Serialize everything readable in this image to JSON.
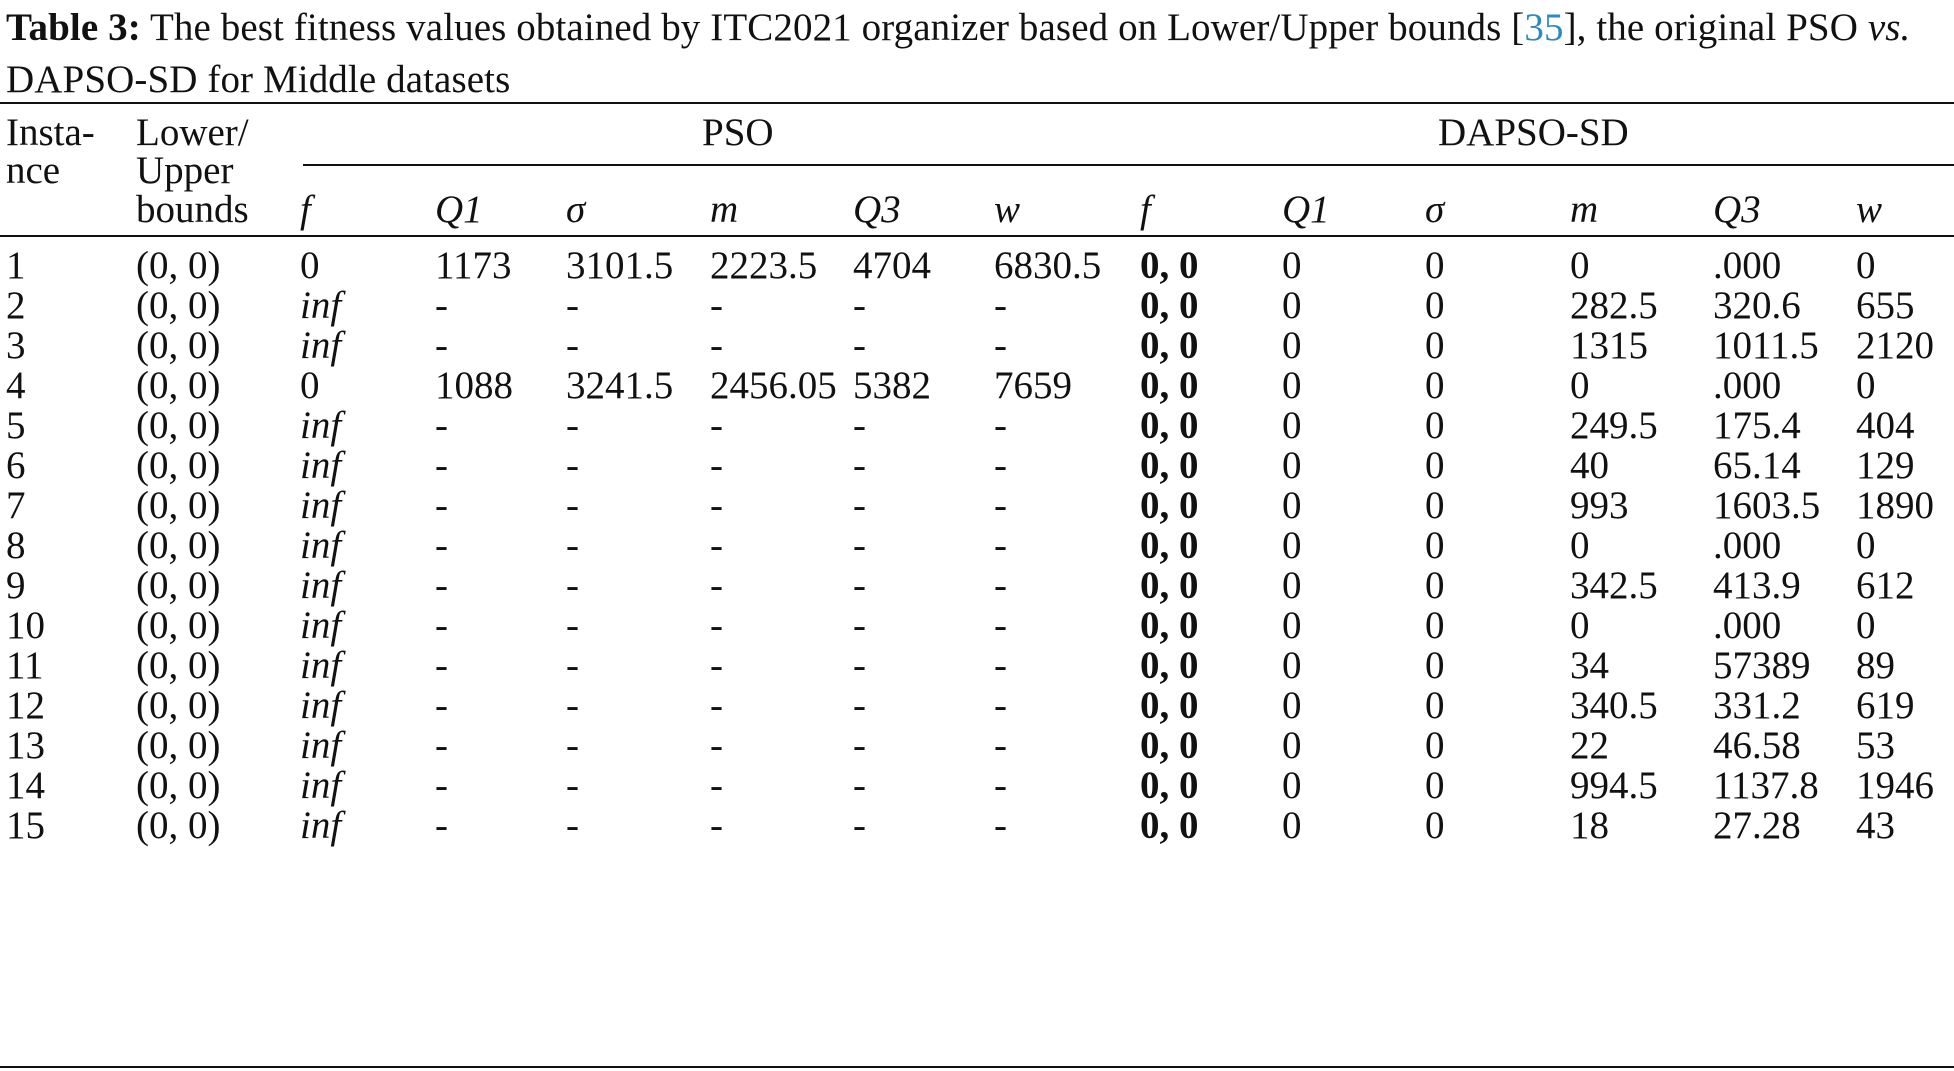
{
  "caption": {
    "label": "Table 3:",
    "text_before": " The best fitness values obtained by ITC2021 organizer based on Lower/Upper bounds [",
    "citation": "35",
    "text_after": "], the original PSO ",
    "vs": "vs.",
    "text_end": " DAPSO-SD for Middle datasets"
  },
  "header": {
    "instance_line1": "Insta-",
    "instance_line2": "nce",
    "bounds_line1": "Lower/",
    "bounds_line2": "Upper",
    "bounds_line3": "bounds",
    "group_pso": "PSO",
    "group_dapso": "DAPSO-SD",
    "sub_cols": [
      "f",
      "Q1",
      "σ",
      "m",
      "Q3",
      "w",
      "f",
      "Q1",
      "σ",
      "m",
      "Q3",
      "w"
    ]
  },
  "rows": [
    [
      "1",
      "(0, 0)",
      "0",
      "1173",
      "3101.5",
      "2223.5",
      "4704",
      "6830.5",
      "0, 0",
      "0",
      "0",
      "0",
      ".000",
      "0"
    ],
    [
      "2",
      "(0, 0)",
      "inf",
      "-",
      "-",
      "-",
      "-",
      "-",
      "0, 0",
      "0",
      "0",
      "282.5",
      "320.6",
      "655"
    ],
    [
      "3",
      "(0, 0)",
      "inf",
      "-",
      "-",
      "-",
      "-",
      "-",
      "0, 0",
      "0",
      "0",
      "1315",
      "1011.5",
      "2120"
    ],
    [
      "4",
      "(0, 0)",
      "0",
      "1088",
      "3241.5",
      "2456.05",
      "5382",
      "7659",
      "0, 0",
      "0",
      "0",
      "0",
      ".000",
      "0"
    ],
    [
      "5",
      "(0, 0)",
      "inf",
      "-",
      "-",
      "-",
      "-",
      "-",
      "0, 0",
      "0",
      "0",
      "249.5",
      "175.4",
      "404"
    ],
    [
      "6",
      "(0, 0)",
      "inf",
      "-",
      "-",
      "-",
      "-",
      "-",
      "0, 0",
      "0",
      "0",
      "40",
      "65.14",
      "129"
    ],
    [
      "7",
      "(0, 0)",
      "inf",
      "-",
      "-",
      "-",
      "-",
      "-",
      "0, 0",
      "0",
      "0",
      "993",
      "1603.5",
      "1890"
    ],
    [
      "8",
      "(0, 0)",
      "inf",
      "-",
      "-",
      "-",
      "-",
      "-",
      "0, 0",
      "0",
      "0",
      "0",
      ".000",
      "0"
    ],
    [
      "9",
      "(0, 0)",
      "inf",
      "-",
      "-",
      "-",
      "-",
      "-",
      "0, 0",
      "0",
      "0",
      "342.5",
      "413.9",
      "612"
    ],
    [
      "10",
      "(0, 0)",
      "inf",
      "-",
      "-",
      "-",
      "-",
      "-",
      "0, 0",
      "0",
      "0",
      "0",
      ".000",
      "0"
    ],
    [
      "11",
      "(0, 0)",
      "inf",
      "-",
      "-",
      "-",
      "-",
      "-",
      "0, 0",
      "0",
      "0",
      "34",
      "57389",
      "89"
    ],
    [
      "12",
      "(0, 0)",
      "inf",
      "-",
      "-",
      "-",
      "-",
      "-",
      "0, 0",
      "0",
      "0",
      "340.5",
      "331.2",
      "619"
    ],
    [
      "13",
      "(0, 0)",
      "inf",
      "-",
      "-",
      "-",
      "-",
      "-",
      "0, 0",
      "0",
      "0",
      "22",
      "46.58",
      "53"
    ],
    [
      "14",
      "(0, 0)",
      "inf",
      "-",
      "-",
      "-",
      "-",
      "-",
      "0, 0",
      "0",
      "0",
      "994.5",
      "1137.8",
      "1946"
    ],
    [
      "15",
      "(0, 0)",
      "inf",
      "-",
      "-",
      "-",
      "-",
      "-",
      "0, 0",
      "0",
      "0",
      "18",
      "27.28",
      "43"
    ]
  ]
}
